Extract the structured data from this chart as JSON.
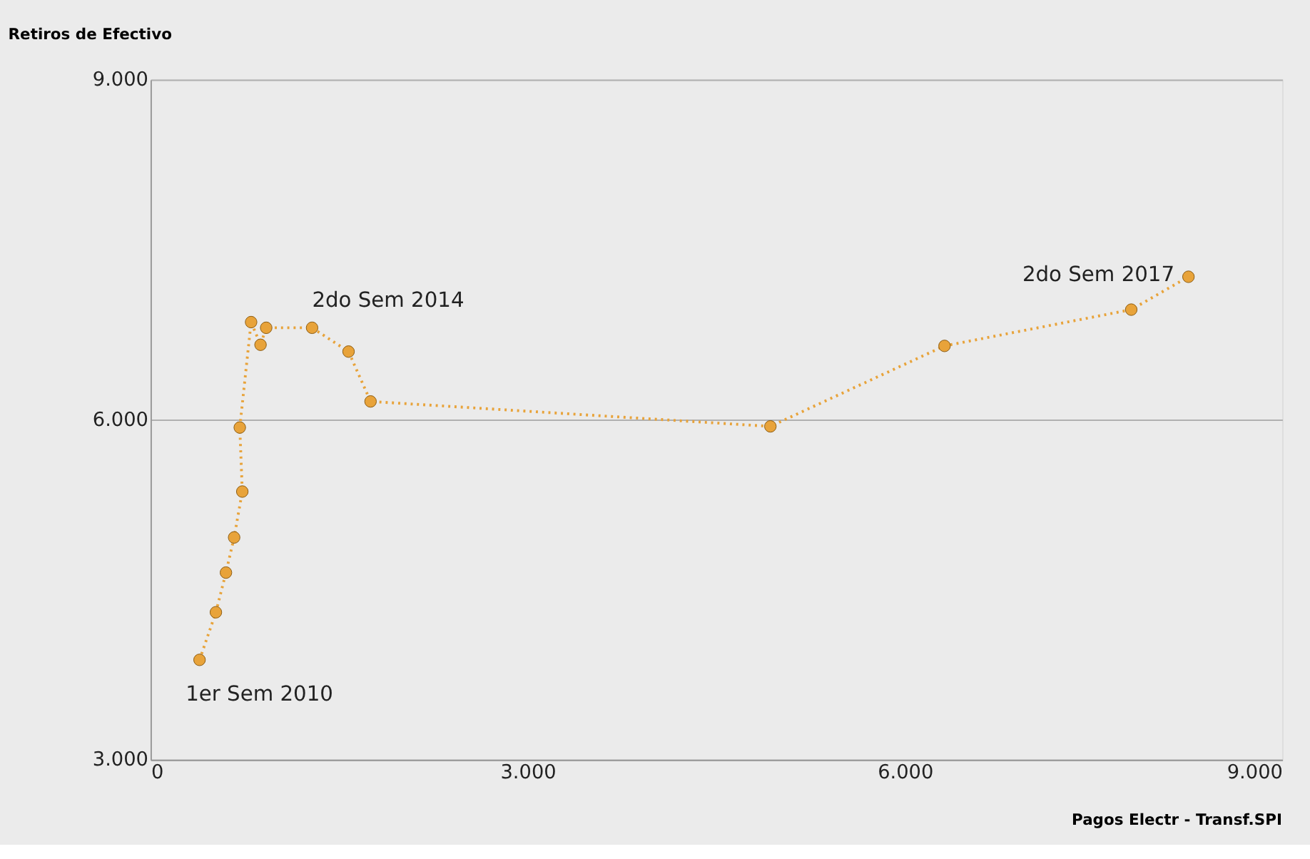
{
  "chart_data": {
    "type": "line",
    "xlabel": "Pagos Electr - Transf.SPI",
    "ylabel": "Retiros de Efectivo",
    "x": [
      390,
      520,
      600,
      665,
      730,
      710,
      800,
      875,
      920,
      1285,
      1575,
      1750,
      4930,
      6315,
      7800,
      8255
    ],
    "series": [
      {
        "color": "#e8a33a",
        "values": [
          3880,
          4300,
          4650,
          4960,
          5365,
          5930,
          6860,
          6660,
          6810,
          6810,
          6600,
          6160,
          5940,
          6650,
          6970,
          7260
        ]
      }
    ],
    "xlim": [
      0,
      9000
    ],
    "ylim": [
      3000,
      9000
    ],
    "xticks": [
      0,
      {
        "value": 3000,
        "label": "3.000"
      },
      {
        "value": 6000,
        "label": "6.000"
      },
      {
        "value": 9000,
        "label": "9.000"
      }
    ],
    "yticks": [
      {
        "value": 3000,
        "label": "3.000"
      },
      {
        "value": 6000,
        "label": "6.000"
      },
      {
        "value": 9000,
        "label": "9.000"
      }
    ],
    "grid": "y",
    "marker": "circle",
    "line_style": "dotted",
    "legend": false,
    "annotations": [
      {
        "text": "1er Sem 2010",
        "x": 390,
        "y": 3880
      },
      {
        "text": "2do Sem 2014",
        "x": 1285,
        "y": 6810
      },
      {
        "text": "2do Sem 2017",
        "x": 8255,
        "y": 7260
      }
    ]
  }
}
